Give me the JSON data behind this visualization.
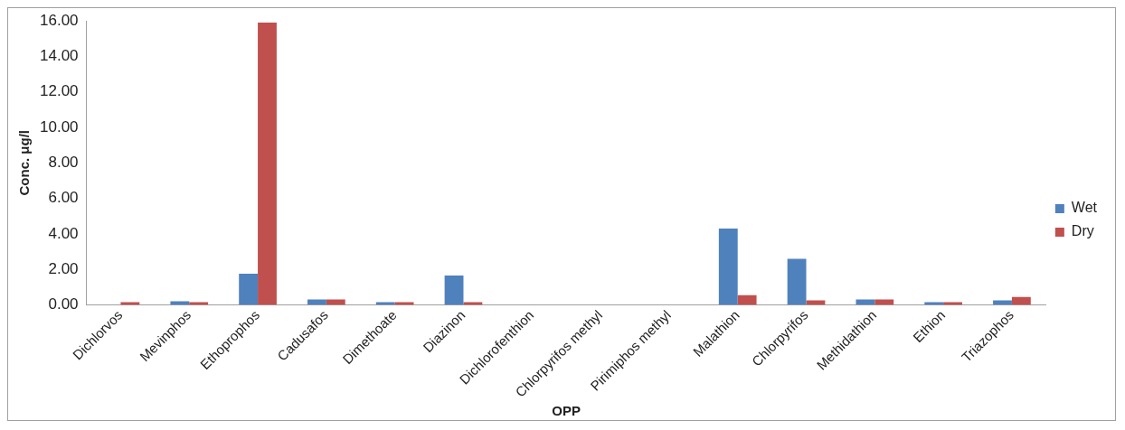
{
  "chart_data": {
    "type": "bar",
    "xlabel": "OPP",
    "ylabel": "Conc. μg/l",
    "categories": [
      "Dichlorvos",
      "Mevinphos",
      "Ethoprophos",
      "Cadusafos",
      "Dimethoate",
      "Diazinon",
      "Dichlorofenthion",
      "Chlorpyrifos methyl",
      "Pirimiphos methyl",
      "Malathion",
      "Chlorpyrifos",
      "Methidathion",
      "Ethion",
      "Triazophos"
    ],
    "series": [
      {
        "name": "Wet",
        "color": "#4f81bd",
        "values": [
          0,
          0.2,
          1.75,
          0.3,
          0.15,
          1.65,
          0,
          0,
          0,
          4.3,
          2.6,
          0.3,
          0.15,
          0.25
        ]
      },
      {
        "name": "Dry",
        "color": "#c0504d",
        "values": [
          0.15,
          0.15,
          15.9,
          0.3,
          0.15,
          0.15,
          0,
          0,
          0,
          0.55,
          0.25,
          0.3,
          0.15,
          0.45
        ]
      }
    ],
    "ylim": [
      0,
      16
    ],
    "yticks": [
      {
        "value": 0,
        "label": "0.00"
      },
      {
        "value": 2,
        "label": "2.00"
      },
      {
        "value": 4,
        "label": "4.00"
      },
      {
        "value": 6,
        "label": "6.00"
      },
      {
        "value": 8,
        "label": "8.00"
      },
      {
        "value": 10,
        "label": "10.00"
      },
      {
        "value": 12,
        "label": "12.00"
      },
      {
        "value": 14,
        "label": "14.00"
      },
      {
        "value": 16,
        "label": "16.00"
      }
    ],
    "grid": false,
    "legend": "right"
  }
}
